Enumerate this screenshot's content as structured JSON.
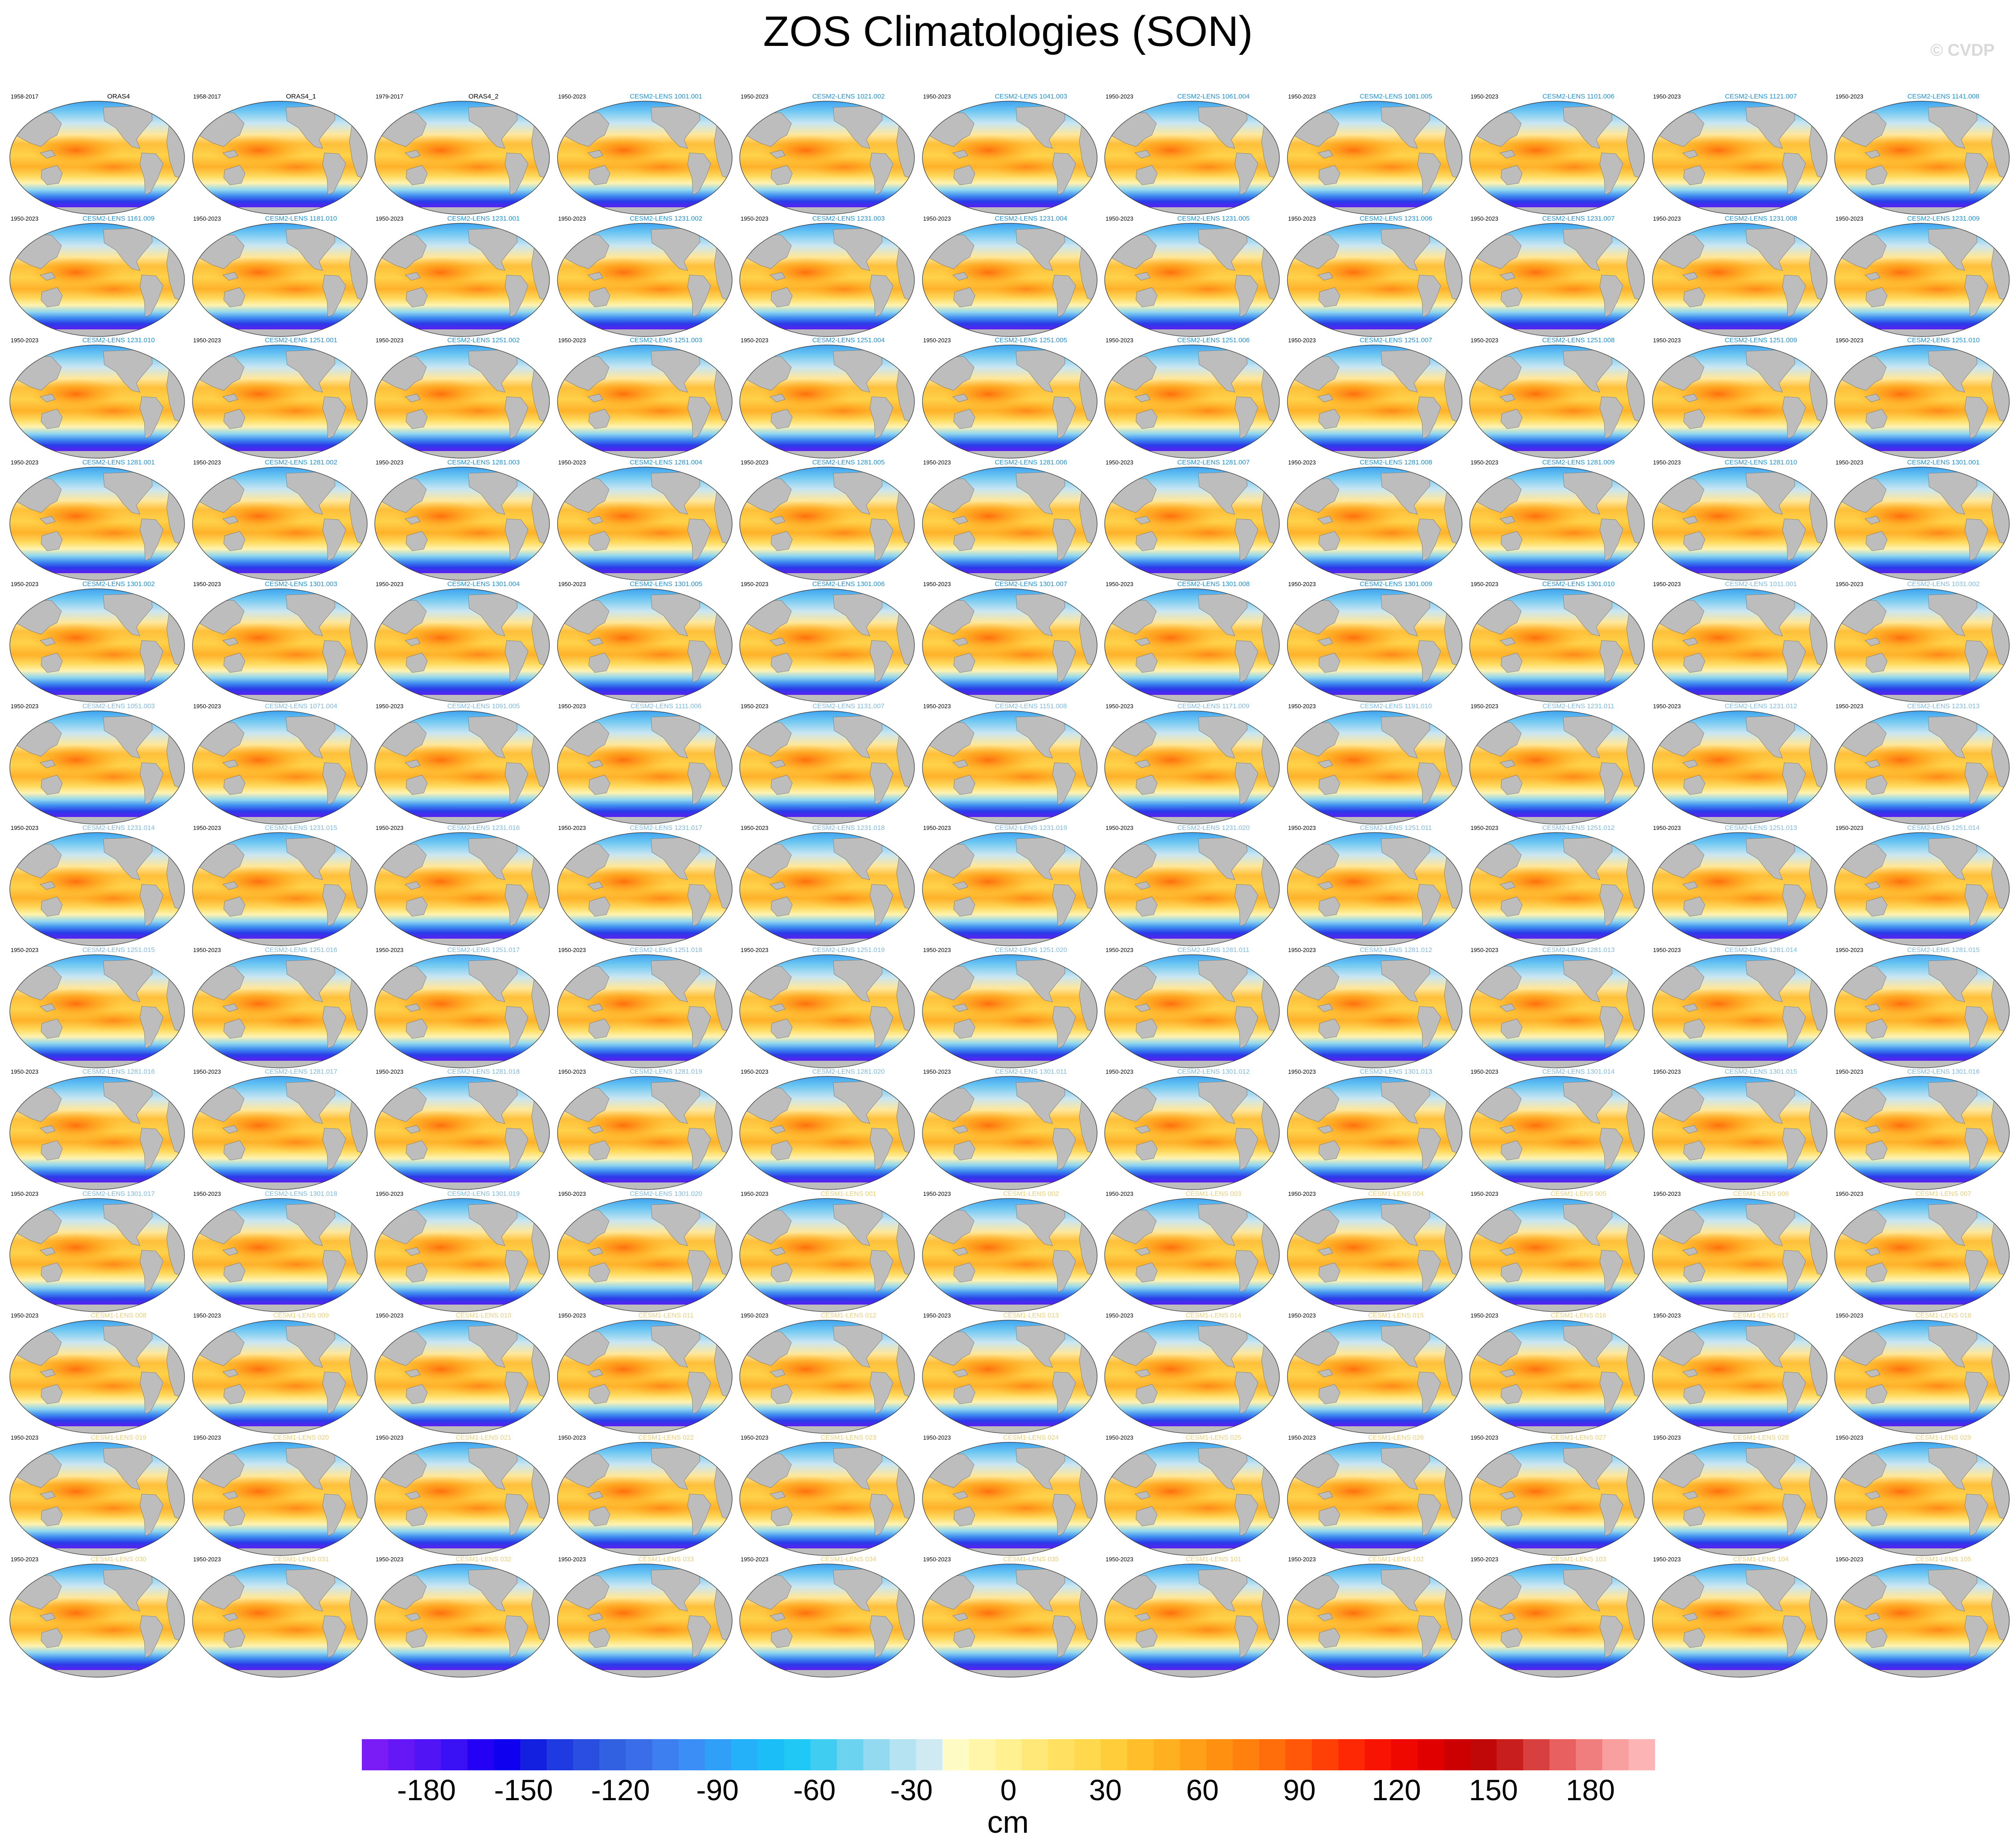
{
  "title": "ZOS Climatologies (SON)",
  "watermark": "© CVDP",
  "colorbar": {
    "ticks": [
      "-180",
      "-150",
      "-120",
      "-90",
      "-60",
      "-30",
      "0",
      "30",
      "60",
      "90",
      "120",
      "150",
      "180"
    ],
    "units": "cm",
    "colors": [
      "#7a1cf5",
      "#6518f5",
      "#5014f5",
      "#3a10f5",
      "#2400f5",
      "#1000f0",
      "#1420e0",
      "#1e3ae0",
      "#2a4ee0",
      "#3160e0",
      "#3a6ee8",
      "#3d7ef0",
      "#3a8ef5",
      "#2f9ff8",
      "#25b0fa",
      "#1cbef8",
      "#20c8f5",
      "#40cdf2",
      "#6bd2ef",
      "#93daf0",
      "#b5e3f2",
      "#cfeaf2",
      "#fffbc4",
      "#fff6aa",
      "#fff090",
      "#ffe878",
      "#ffe060",
      "#ffd84e",
      "#ffcc3a",
      "#ffbe2a",
      "#ffb020",
      "#ffa018",
      "#ff9010",
      "#ff800c",
      "#ff6e0a",
      "#ff5808",
      "#ff4006",
      "#ff2804",
      "#f81402",
      "#ee0800",
      "#e00000",
      "#cc0000",
      "#c00808",
      "#c81e1e",
      "#d84040",
      "#e86060",
      "#f07e7e",
      "#f8a0a0",
      "#fcb4b4"
    ]
  },
  "panels": [
    {
      "title": "ORAS4",
      "period": "1958-2017",
      "group": "obs"
    },
    {
      "title": "ORAS4_1",
      "period": "1958-2017",
      "group": "obs"
    },
    {
      "title": "ORAS4_2",
      "period": "1979-2017",
      "group": "obs"
    },
    {
      "title": "CESM2-LENS 1001.001",
      "period": "1950-2023",
      "group": "cesm2"
    },
    {
      "title": "CESM2-LENS 1021.002",
      "period": "1950-2023",
      "group": "cesm2"
    },
    {
      "title": "CESM2-LENS 1041.003",
      "period": "1950-2023",
      "group": "cesm2"
    },
    {
      "title": "CESM2-LENS 1061.004",
      "period": "1950-2023",
      "group": "cesm2"
    },
    {
      "title": "CESM2-LENS 1081.005",
      "period": "1950-2023",
      "group": "cesm2"
    },
    {
      "title": "CESM2-LENS 1101.006",
      "period": "1950-2023",
      "group": "cesm2"
    },
    {
      "title": "CESM2-LENS 1121.007",
      "period": "1950-2023",
      "group": "cesm2"
    },
    {
      "title": "CESM2-LENS 1141.008",
      "period": "1950-2023",
      "group": "cesm2"
    },
    {
      "title": "CESM2-LENS 1161.009",
      "period": "1950-2023",
      "group": "cesm2"
    },
    {
      "title": "CESM2-LENS 1181.010",
      "period": "1950-2023",
      "group": "cesm2"
    },
    {
      "title": "CESM2-LENS 1231.001",
      "period": "1950-2023",
      "group": "cesm2"
    },
    {
      "title": "CESM2-LENS 1231.002",
      "period": "1950-2023",
      "group": "cesm2"
    },
    {
      "title": "CESM2-LENS 1231.003",
      "period": "1950-2023",
      "group": "cesm2"
    },
    {
      "title": "CESM2-LENS 1231.004",
      "period": "1950-2023",
      "group": "cesm2"
    },
    {
      "title": "CESM2-LENS 1231.005",
      "period": "1950-2023",
      "group": "cesm2"
    },
    {
      "title": "CESM2-LENS 1231.006",
      "period": "1950-2023",
      "group": "cesm2"
    },
    {
      "title": "CESM2-LENS 1231.007",
      "period": "1950-2023",
      "group": "cesm2"
    },
    {
      "title": "CESM2-LENS 1231.008",
      "period": "1950-2023",
      "group": "cesm2"
    },
    {
      "title": "CESM2-LENS 1231.009",
      "period": "1950-2023",
      "group": "cesm2"
    },
    {
      "title": "CESM2-LENS 1231.010",
      "period": "1950-2023",
      "group": "cesm2"
    },
    {
      "title": "CESM2-LENS 1251.001",
      "period": "1950-2023",
      "group": "cesm2"
    },
    {
      "title": "CESM2-LENS 1251.002",
      "period": "1950-2023",
      "group": "cesm2"
    },
    {
      "title": "CESM2-LENS 1251.003",
      "period": "1950-2023",
      "group": "cesm2"
    },
    {
      "title": "CESM2-LENS 1251.004",
      "period": "1950-2023",
      "group": "cesm2"
    },
    {
      "title": "CESM2-LENS 1251.005",
      "period": "1950-2023",
      "group": "cesm2"
    },
    {
      "title": "CESM2-LENS 1251.006",
      "period": "1950-2023",
      "group": "cesm2"
    },
    {
      "title": "CESM2-LENS 1251.007",
      "period": "1950-2023",
      "group": "cesm2"
    },
    {
      "title": "CESM2-LENS 1251.008",
      "period": "1950-2023",
      "group": "cesm2"
    },
    {
      "title": "CESM2-LENS 1251.009",
      "period": "1950-2023",
      "group": "cesm2"
    },
    {
      "title": "CESM2-LENS 1251.010",
      "period": "1950-2023",
      "group": "cesm2"
    },
    {
      "title": "CESM2-LENS 1281.001",
      "period": "1950-2023",
      "group": "cesm2"
    },
    {
      "title": "CESM2-LENS 1281.002",
      "period": "1950-2023",
      "group": "cesm2"
    },
    {
      "title": "CESM2-LENS 1281.003",
      "period": "1950-2023",
      "group": "cesm2"
    },
    {
      "title": "CESM2-LENS 1281.004",
      "period": "1950-2023",
      "group": "cesm2"
    },
    {
      "title": "CESM2-LENS 1281.005",
      "period": "1950-2023",
      "group": "cesm2"
    },
    {
      "title": "CESM2-LENS 1281.006",
      "period": "1950-2023",
      "group": "cesm2"
    },
    {
      "title": "CESM2-LENS 1281.007",
      "period": "1950-2023",
      "group": "cesm2"
    },
    {
      "title": "CESM2-LENS 1281.008",
      "period": "1950-2023",
      "group": "cesm2"
    },
    {
      "title": "CESM2-LENS 1281.009",
      "period": "1950-2023",
      "group": "cesm2"
    },
    {
      "title": "CESM2-LENS 1281.010",
      "period": "1950-2023",
      "group": "cesm2"
    },
    {
      "title": "CESM2-LENS 1301.001",
      "period": "1950-2023",
      "group": "cesm2"
    },
    {
      "title": "CESM2-LENS 1301.002",
      "period": "1950-2023",
      "group": "cesm2"
    },
    {
      "title": "CESM2-LENS 1301.003",
      "period": "1950-2023",
      "group": "cesm2"
    },
    {
      "title": "CESM2-LENS 1301.004",
      "period": "1950-2023",
      "group": "cesm2"
    },
    {
      "title": "CESM2-LENS 1301.005",
      "period": "1950-2023",
      "group": "cesm2"
    },
    {
      "title": "CESM2-LENS 1301.006",
      "period": "1950-2023",
      "group": "cesm2"
    },
    {
      "title": "CESM2-LENS 1301.007",
      "period": "1950-2023",
      "group": "cesm2"
    },
    {
      "title": "CESM2-LENS 1301.008",
      "period": "1950-2023",
      "group": "cesm2"
    },
    {
      "title": "CESM2-LENS 1301.009",
      "period": "1950-2023",
      "group": "cesm2"
    },
    {
      "title": "CESM2-LENS 1301.010",
      "period": "1950-2023",
      "group": "cesm2"
    },
    {
      "title": "CESM2-LENS 1011.001",
      "period": "1950-2023",
      "group": "cesm2b"
    },
    {
      "title": "CESM2-LENS 1031.002",
      "period": "1950-2023",
      "group": "cesm2b"
    },
    {
      "title": "CESM2-LENS 1051.003",
      "period": "1950-2023",
      "group": "cesm2b"
    },
    {
      "title": "CESM2-LENS 1071.004",
      "period": "1950-2023",
      "group": "cesm2b"
    },
    {
      "title": "CESM2-LENS 1091.005",
      "period": "1950-2023",
      "group": "cesm2b"
    },
    {
      "title": "CESM2-LENS 1111.006",
      "period": "1950-2023",
      "group": "cesm2b"
    },
    {
      "title": "CESM2-LENS 1131.007",
      "period": "1950-2023",
      "group": "cesm2b"
    },
    {
      "title": "CESM2-LENS 1151.008",
      "period": "1950-2023",
      "group": "cesm2b"
    },
    {
      "title": "CESM2-LENS 1171.009",
      "period": "1950-2023",
      "group": "cesm2b"
    },
    {
      "title": "CESM2-LENS 1191.010",
      "period": "1950-2023",
      "group": "cesm2b"
    },
    {
      "title": "CESM2-LENS 1231.011",
      "period": "1950-2023",
      "group": "cesm2b"
    },
    {
      "title": "CESM2-LENS 1231.012",
      "period": "1950-2023",
      "group": "cesm2b"
    },
    {
      "title": "CESM2-LENS 1231.013",
      "period": "1950-2023",
      "group": "cesm2b"
    },
    {
      "title": "CESM2-LENS 1231.014",
      "period": "1950-2023",
      "group": "cesm2b"
    },
    {
      "title": "CESM2-LENS 1231.015",
      "period": "1950-2023",
      "group": "cesm2b"
    },
    {
      "title": "CESM2-LENS 1231.016",
      "period": "1950-2023",
      "group": "cesm2b"
    },
    {
      "title": "CESM2-LENS 1231.017",
      "period": "1950-2023",
      "group": "cesm2b"
    },
    {
      "title": "CESM2-LENS 1231.018",
      "period": "1950-2023",
      "group": "cesm2b"
    },
    {
      "title": "CESM2-LENS 1231.019",
      "period": "1950-2023",
      "group": "cesm2b"
    },
    {
      "title": "CESM2-LENS 1231.020",
      "period": "1950-2023",
      "group": "cesm2b"
    },
    {
      "title": "CESM2-LENS 1251.011",
      "period": "1950-2023",
      "group": "cesm2b"
    },
    {
      "title": "CESM2-LENS 1251.012",
      "period": "1950-2023",
      "group": "cesm2b"
    },
    {
      "title": "CESM2-LENS 1251.013",
      "period": "1950-2023",
      "group": "cesm2b"
    },
    {
      "title": "CESM2-LENS 1251.014",
      "period": "1950-2023",
      "group": "cesm2b"
    },
    {
      "title": "CESM2-LENS 1251.015",
      "period": "1950-2023",
      "group": "cesm2b"
    },
    {
      "title": "CESM2-LENS 1251.016",
      "period": "1950-2023",
      "group": "cesm2b"
    },
    {
      "title": "CESM2-LENS 1251.017",
      "period": "1950-2023",
      "group": "cesm2b"
    },
    {
      "title": "CESM2-LENS 1251.018",
      "period": "1950-2023",
      "group": "cesm2b"
    },
    {
      "title": "CESM2-LENS 1251.019",
      "period": "1950-2023",
      "group": "cesm2b"
    },
    {
      "title": "CESM2-LENS 1251.020",
      "period": "1950-2023",
      "group": "cesm2b"
    },
    {
      "title": "CESM2-LENS 1281.011",
      "period": "1950-2023",
      "group": "cesm2b"
    },
    {
      "title": "CESM2-LENS 1281.012",
      "period": "1950-2023",
      "group": "cesm2b"
    },
    {
      "title": "CESM2-LENS 1281.013",
      "period": "1950-2023",
      "group": "cesm2b"
    },
    {
      "title": "CESM2-LENS 1281.014",
      "period": "1950-2023",
      "group": "cesm2b"
    },
    {
      "title": "CESM2-LENS 1281.015",
      "period": "1950-2023",
      "group": "cesm2b"
    },
    {
      "title": "CESM2-LENS 1281.016",
      "period": "1950-2023",
      "group": "cesm2b"
    },
    {
      "title": "CESM2-LENS 1281.017",
      "period": "1950-2023",
      "group": "cesm2b"
    },
    {
      "title": "CESM2-LENS 1281.018",
      "period": "1950-2023",
      "group": "cesm2b"
    },
    {
      "title": "CESM2-LENS 1281.019",
      "period": "1950-2023",
      "group": "cesm2b"
    },
    {
      "title": "CESM2-LENS 1281.020",
      "period": "1950-2023",
      "group": "cesm2b"
    },
    {
      "title": "CESM2-LENS 1301.011",
      "period": "1950-2023",
      "group": "cesm2b"
    },
    {
      "title": "CESM2-LENS 1301.012",
      "period": "1950-2023",
      "group": "cesm2b"
    },
    {
      "title": "CESM2-LENS 1301.013",
      "period": "1950-2023",
      "group": "cesm2b"
    },
    {
      "title": "CESM2-LENS 1301.014",
      "period": "1950-2023",
      "group": "cesm2b"
    },
    {
      "title": "CESM2-LENS 1301.015",
      "period": "1950-2023",
      "group": "cesm2b"
    },
    {
      "title": "CESM2-LENS 1301.016",
      "period": "1950-2023",
      "group": "cesm2b"
    },
    {
      "title": "CESM2-LENS 1301.017",
      "period": "1950-2023",
      "group": "cesm2b"
    },
    {
      "title": "CESM2-LENS 1301.018",
      "period": "1950-2023",
      "group": "cesm2b"
    },
    {
      "title": "CESM2-LENS 1301.019",
      "period": "1950-2023",
      "group": "cesm2b"
    },
    {
      "title": "CESM2-LENS 1301.020",
      "period": "1950-2023",
      "group": "cesm2b"
    },
    {
      "title": "CESM1-LENS 001",
      "period": "1950-2023",
      "group": "cesm1"
    },
    {
      "title": "CESM1-LENS 002",
      "period": "1950-2023",
      "group": "cesm1"
    },
    {
      "title": "CESM1-LENS 003",
      "period": "1950-2023",
      "group": "cesm1"
    },
    {
      "title": "CESM1-LENS 004",
      "period": "1950-2023",
      "group": "cesm1"
    },
    {
      "title": "CESM1-LENS 005",
      "period": "1950-2023",
      "group": "cesm1"
    },
    {
      "title": "CESM1-LENS 006",
      "period": "1950-2023",
      "group": "cesm1"
    },
    {
      "title": "CESM1-LENS 007",
      "period": "1950-2023",
      "group": "cesm1"
    },
    {
      "title": "CESM1-LENS 008",
      "period": "1950-2023",
      "group": "cesm1"
    },
    {
      "title": "CESM1-LENS 009",
      "period": "1950-2023",
      "group": "cesm1"
    },
    {
      "title": "CESM1-LENS 010",
      "period": "1950-2023",
      "group": "cesm1"
    },
    {
      "title": "CESM1-LENS 011",
      "period": "1950-2023",
      "group": "cesm1"
    },
    {
      "title": "CESM1-LENS 012",
      "period": "1950-2023",
      "group": "cesm1"
    },
    {
      "title": "CESM1-LENS 013",
      "period": "1950-2023",
      "group": "cesm1"
    },
    {
      "title": "CESM1-LENS 014",
      "period": "1950-2023",
      "group": "cesm1"
    },
    {
      "title": "CESM1-LENS 015",
      "period": "1950-2023",
      "group": "cesm1"
    },
    {
      "title": "CESM1-LENS 016",
      "period": "1950-2023",
      "group": "cesm1"
    },
    {
      "title": "CESM1-LENS 017",
      "period": "1950-2023",
      "group": "cesm1"
    },
    {
      "title": "CESM1-LENS 018",
      "period": "1950-2023",
      "group": "cesm1"
    },
    {
      "title": "CESM1-LENS 019",
      "period": "1950-2023",
      "group": "cesm1"
    },
    {
      "title": "CESM1-LENS 020",
      "period": "1950-2023",
      "group": "cesm1"
    },
    {
      "title": "CESM1-LENS 021",
      "period": "1950-2023",
      "group": "cesm1"
    },
    {
      "title": "CESM1-LENS 022",
      "period": "1950-2023",
      "group": "cesm1"
    },
    {
      "title": "CESM1-LENS 023",
      "period": "1950-2023",
      "group": "cesm1"
    },
    {
      "title": "CESM1-LENS 024",
      "period": "1950-2023",
      "group": "cesm1"
    },
    {
      "title": "CESM1-LENS 025",
      "period": "1950-2023",
      "group": "cesm1"
    },
    {
      "title": "CESM1-LENS 026",
      "period": "1950-2023",
      "group": "cesm1"
    },
    {
      "title": "CESM1-LENS 027",
      "period": "1950-2023",
      "group": "cesm1"
    },
    {
      "title": "CESM1-LENS 028",
      "period": "1950-2023",
      "group": "cesm1"
    },
    {
      "title": "CESM1-LENS 029",
      "period": "1950-2023",
      "group": "cesm1"
    },
    {
      "title": "CESM1-LENS 030",
      "period": "1950-2023",
      "group": "cesm1"
    },
    {
      "title": "CESM1-LENS 031",
      "period": "1950-2023",
      "group": "cesm1"
    },
    {
      "title": "CESM1-LENS 032",
      "period": "1950-2023",
      "group": "cesm1"
    },
    {
      "title": "CESM1-LENS 033",
      "period": "1950-2023",
      "group": "cesm1"
    },
    {
      "title": "CESM1-LENS 034",
      "period": "1950-2023",
      "group": "cesm1"
    },
    {
      "title": "CESM1-LENS 035",
      "period": "1950-2023",
      "group": "cesm1"
    },
    {
      "title": "CESM1-LENS 101",
      "period": "1950-2023",
      "group": "cesm1"
    },
    {
      "title": "CESM1-LENS 102",
      "period": "1950-2023",
      "group": "cesm1"
    },
    {
      "title": "CESM1-LENS 103",
      "period": "1950-2023",
      "group": "cesm1"
    },
    {
      "title": "CESM1-LENS 104",
      "period": "1950-2023",
      "group": "cesm1"
    },
    {
      "title": "CESM1-LENS 105",
      "period": "1950-2023",
      "group": "cesm1"
    }
  ],
  "title_colors": {
    "obs": "#000000",
    "cesm2": "#1d8fd0",
    "cesm2b": "#7fb8dd",
    "cesm1": "#e8cf7a"
  },
  "chart_data": {
    "type": "heatmap",
    "title": "ZOS Climatologies (SON)",
    "layout": "small multiples, 11 columns x 13 rows",
    "projection": "global ellipse (Robinson-like), Pacific-centered",
    "colorbar_range": [
      -200,
      200
    ],
    "colorbar_interval": 10,
    "colorbar_labels": [
      -180,
      -150,
      -120,
      -90,
      -60,
      -30,
      0,
      30,
      60,
      90,
      120,
      150,
      180
    ],
    "units": "cm"
  }
}
